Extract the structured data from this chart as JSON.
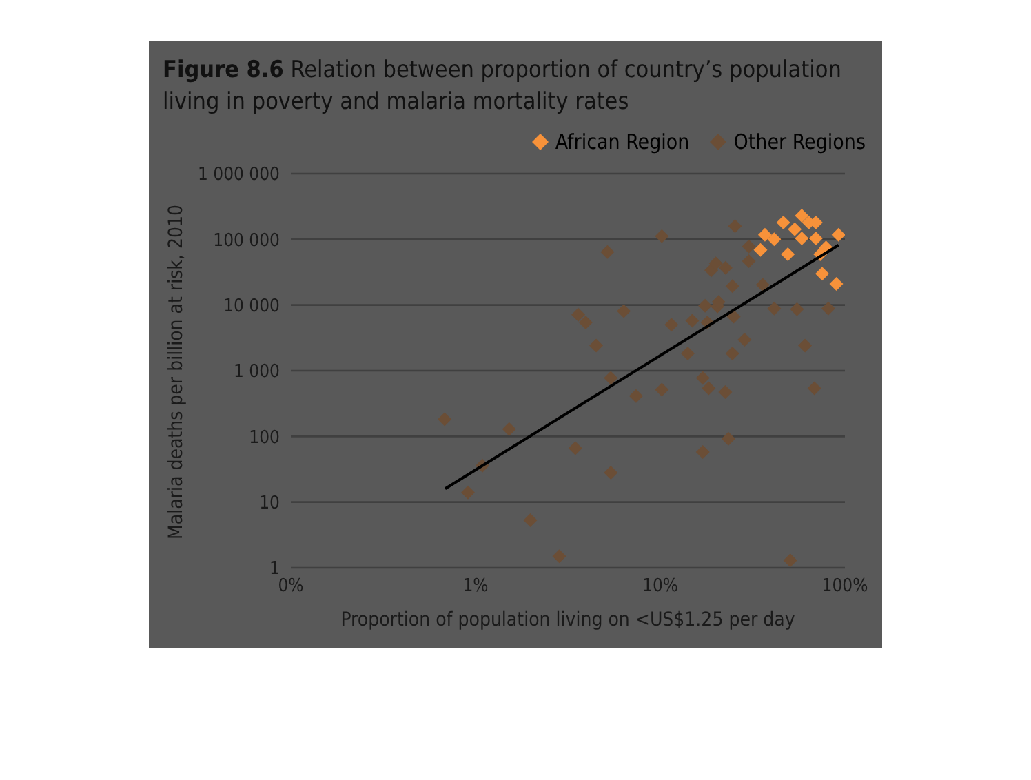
{
  "chart_data": {
    "type": "scatter",
    "title": "Figure 8.6 Relation between proportion of country’s population living in poverty and malaria mortality rates",
    "xlabel": "Proportion of population living on <US$1.25 per day",
    "ylabel": "Malaria deaths per billion at risk, 2010",
    "log": "xy",
    "grid": "y",
    "legend": "top right",
    "marker": "diamond",
    "xlim": [
      0.1,
      100
    ],
    "xticks": [
      {
        "value": 0.1,
        "label": "0%"
      },
      {
        "value": 1,
        "label": "1%"
      },
      {
        "value": 10,
        "label": "10%"
      },
      {
        "value": 100,
        "label": "100%"
      }
    ],
    "ylim": [
      1,
      1000000
    ],
    "yticks": [
      1,
      10,
      100,
      {
        "value": 1000,
        "label": "1 000"
      },
      {
        "value": 10000,
        "label": "10 000"
      },
      {
        "value": 100000,
        "label": "100 000"
      },
      {
        "value": 1000000,
        "label": "1 000 000"
      }
    ],
    "series": [
      {
        "name": "African Region",
        "color": "#f7923a",
        "x": [
          36.9,
          41.4,
          34.9,
          49.1,
          46.4,
          53.5,
          58.4,
          63.8,
          69.6,
          58.4,
          69.6,
          79,
          92.3,
          73.5,
          75.3,
          89.8
        ],
        "values": [
          117000,
          100000,
          69000,
          59200,
          180000,
          142000,
          229000,
          180000,
          180000,
          103000,
          103000,
          75100,
          117000,
          59200,
          29900,
          21000
        ]
      },
      {
        "name": "Other Regions",
        "color": "#6b4e36",
        "x": [
          0.68,
          1.52,
          1.09,
          0.91,
          1.98,
          2.84,
          3.6,
          3.95,
          3.47,
          10.2,
          5.18,
          25.4,
          6.35,
          4.5,
          11.5,
          14.9,
          18,
          17.5,
          20.4,
          20.7,
          25,
          18.9,
          20,
          22.6,
          24.6,
          28.6,
          14.1,
          24.6,
          5.4,
          7.4,
          10.2,
          17,
          18.3,
          22.5,
          5.4,
          17,
          23.4,
          50.6,
          41.4,
          55,
          81.3,
          60.8,
          68.3,
          30.2,
          30.2,
          35.9
        ],
        "values": [
          182,
          129,
          36,
          14,
          5.3,
          1.5,
          7100,
          5420,
          66,
          111600,
          64000,
          159000,
          8070,
          2410,
          5000,
          5760,
          5420,
          9770,
          9510,
          11100,
          6670,
          33800,
          42900,
          36700,
          19400,
          2960,
          1830,
          1830,
          777,
          411,
          515,
          777,
          540,
          474,
          28,
          58,
          92,
          1.3,
          8870,
          8630,
          8870,
          2410,
          540,
          77600,
          46600,
          20400
        ]
      },
      {
        "type": "line",
        "color": "#000000",
        "marker": "none",
        "x": [
          0.685,
          92.3
        ],
        "values": [
          16,
          81500
        ]
      }
    ]
  }
}
